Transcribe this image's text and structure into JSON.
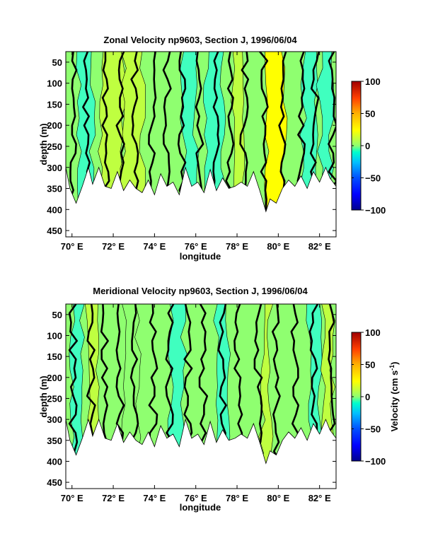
{
  "chart_data": [
    {
      "type": "heatmap",
      "title": "Zonal Velocity np9603, Section J, 1996/06/04",
      "xlabel": "longitude",
      "ylabel": "depth (m)",
      "x_ticks": [
        "70° E",
        "72° E",
        "74° E",
        "76° E",
        "78° E",
        "80° E",
        "82° E"
      ],
      "x_tick_values": [
        70,
        72,
        74,
        76,
        78,
        80,
        82
      ],
      "xlim": [
        69.7,
        82.8
      ],
      "y_ticks": [
        "50",
        "100",
        "150",
        "200",
        "250",
        "300",
        "350",
        "400",
        "450"
      ],
      "y_tick_values": [
        50,
        100,
        150,
        200,
        250,
        300,
        350,
        400,
        450
      ],
      "ylim": [
        25,
        465
      ],
      "y_reversed": true,
      "bottom_depth_profile": {
        "lon": [
          69.7,
          69.9,
          70.2,
          70.5,
          70.8,
          71.0,
          71.3,
          71.6,
          71.9,
          72.2,
          72.5,
          72.8,
          73.1,
          73.4,
          73.7,
          74.0,
          74.3,
          74.6,
          74.9,
          75.2,
          75.5,
          75.8,
          76.1,
          76.4,
          76.7,
          77.0,
          77.3,
          77.6,
          77.9,
          78.2,
          78.5,
          78.8,
          79.1,
          79.4,
          79.6,
          79.9,
          80.2,
          80.5,
          80.8,
          81.1,
          81.4,
          81.7,
          82.0,
          82.3,
          82.5,
          82.8
        ],
        "depth": [
          300,
          350,
          385,
          345,
          300,
          340,
          300,
          345,
          350,
          310,
          355,
          330,
          350,
          360,
          330,
          365,
          315,
          345,
          335,
          365,
          300,
          345,
          335,
          360,
          305,
          355,
          325,
          350,
          345,
          335,
          345,
          310,
          355,
          405,
          375,
          385,
          350,
          330,
          345,
          320,
          350,
          310,
          335,
          300,
          325,
          345
        ]
      },
      "zonal_bands": [
        {
          "lon_range": [
            70.3,
            71.0
          ],
          "value": -20
        },
        {
          "lon_range": [
            71.4,
            72.5
          ],
          "value": 22
        },
        {
          "lon_range": [
            72.5,
            73.4
          ],
          "value": 15
        },
        {
          "lon_range": [
            75.4,
            76.0
          ],
          "value": -10
        },
        {
          "lon_range": [
            76.5,
            77.3
          ],
          "value": -12
        },
        {
          "lon_range": [
            77.8,
            78.4
          ],
          "value": 18
        },
        {
          "lon_range": [
            79.5,
            80.3
          ],
          "value": 25
        },
        {
          "lon_range": [
            81.2,
            81.8
          ],
          "value": -25
        },
        {
          "lon_range": [
            82.0,
            82.6
          ],
          "value": -10
        }
      ]
    },
    {
      "type": "heatmap",
      "title": "Meridional Velocity np9603, Section J, 1996/06/04",
      "xlabel": "longitude",
      "ylabel": "depth (m)",
      "x_ticks": [
        "70° E",
        "72° E",
        "74° E",
        "76° E",
        "78° E",
        "80° E",
        "82° E"
      ],
      "x_tick_values": [
        70,
        72,
        74,
        76,
        78,
        80,
        82
      ],
      "xlim": [
        69.7,
        82.8
      ],
      "y_ticks": [
        "50",
        "100",
        "150",
        "200",
        "250",
        "300",
        "350",
        "400",
        "450"
      ],
      "y_tick_values": [
        50,
        100,
        150,
        200,
        250,
        300,
        350,
        400,
        450
      ],
      "ylim": [
        25,
        465
      ],
      "y_reversed": true,
      "bottom_depth_profile": {
        "lon": [
          69.7,
          69.9,
          70.2,
          70.5,
          70.8,
          71.0,
          71.3,
          71.6,
          71.9,
          72.2,
          72.5,
          72.8,
          73.1,
          73.4,
          73.7,
          74.0,
          74.3,
          74.6,
          74.9,
          75.2,
          75.5,
          75.8,
          76.1,
          76.4,
          76.7,
          77.0,
          77.3,
          77.6,
          77.9,
          78.2,
          78.5,
          78.8,
          79.1,
          79.4,
          79.6,
          79.9,
          80.2,
          80.5,
          80.8,
          81.1,
          81.4,
          81.7,
          82.0,
          82.3,
          82.5,
          82.8
        ],
        "depth": [
          300,
          350,
          385,
          345,
          300,
          340,
          300,
          345,
          350,
          310,
          355,
          330,
          350,
          360,
          330,
          365,
          315,
          345,
          335,
          365,
          300,
          345,
          335,
          360,
          305,
          355,
          325,
          350,
          345,
          335,
          345,
          310,
          355,
          405,
          375,
          385,
          350,
          330,
          345,
          320,
          350,
          310,
          335,
          300,
          325,
          345
        ]
      },
      "zonal_bands": [
        {
          "lon_range": [
            70.0,
            70.5
          ],
          "value": -15
        },
        {
          "lon_range": [
            70.8,
            71.2
          ],
          "value": 20
        },
        {
          "lon_range": [
            72.5,
            73.2
          ],
          "value": -8
        },
        {
          "lon_range": [
            74.8,
            75.4
          ],
          "value": -10
        },
        {
          "lon_range": [
            77.0,
            77.6
          ],
          "value": -10
        },
        {
          "lon_range": [
            79.2,
            79.6
          ],
          "value": 15
        },
        {
          "lon_range": [
            81.5,
            82.0
          ],
          "value": -20
        },
        {
          "lon_range": [
            82.2,
            82.6
          ],
          "value": 18
        }
      ]
    }
  ],
  "colorbar": {
    "label": "Velocity (cm s",
    "label_superscript": "-1",
    "label_close": ")",
    "ticks": [
      "100",
      "50",
      "0",
      "−50",
      "−100"
    ],
    "tick_values": [
      100,
      50,
      0,
      -50,
      -100
    ],
    "range": [
      -100,
      100
    ],
    "colors": [
      "#00008f",
      "#0000ff",
      "#0050ff",
      "#00a0ff",
      "#00e6ff",
      "#40ffbf",
      "#8fff70",
      "#bfff40",
      "#ffff00",
      "#ffb000",
      "#ff6000",
      "#ff1000",
      "#a00000"
    ]
  }
}
